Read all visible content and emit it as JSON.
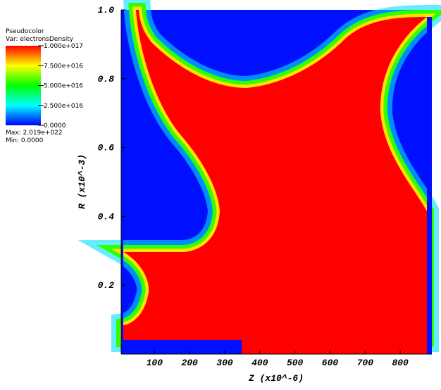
{
  "chart_data": {
    "type": "pseudocolor",
    "legend": {
      "title": "Pseudocolor",
      "variable": "Var: electronsDensity",
      "clim": [
        0,
        1e+17
      ],
      "ticks": [
        {
          "value": 1e+17,
          "label": "1.000e+017"
        },
        {
          "value": 7.5e+16,
          "label": "7.500e+016"
        },
        {
          "value": 5e+16,
          "label": "5.000e+016"
        },
        {
          "value": 2.5e+16,
          "label": "2.500e+016"
        },
        {
          "value": 0,
          "label": "0.0000"
        }
      ],
      "colors": [
        "#0000ff",
        "#00ffff",
        "#00ff00",
        "#ffff00",
        "#ff0000"
      ],
      "max": "Max: 2.019e+022",
      "min": "Min: 0.0000"
    },
    "xlabel": "Z (x10^-6)",
    "ylabel": "R (x10^-3)",
    "xlim": [
      5,
      890
    ],
    "xticks": [
      100,
      200,
      300,
      400,
      500,
      600,
      700,
      800
    ],
    "ylim": [
      0,
      1
    ],
    "yticks": [
      {
        "value": 0.2,
        "label": "0.2"
      },
      {
        "value": 0.4,
        "label": "0.4"
      },
      {
        "value": 0.6,
        "label": "0.6"
      },
      {
        "value": 0.8,
        "label": "0.8"
      },
      {
        "value": 1,
        "label": "1.0"
      }
    ]
  }
}
